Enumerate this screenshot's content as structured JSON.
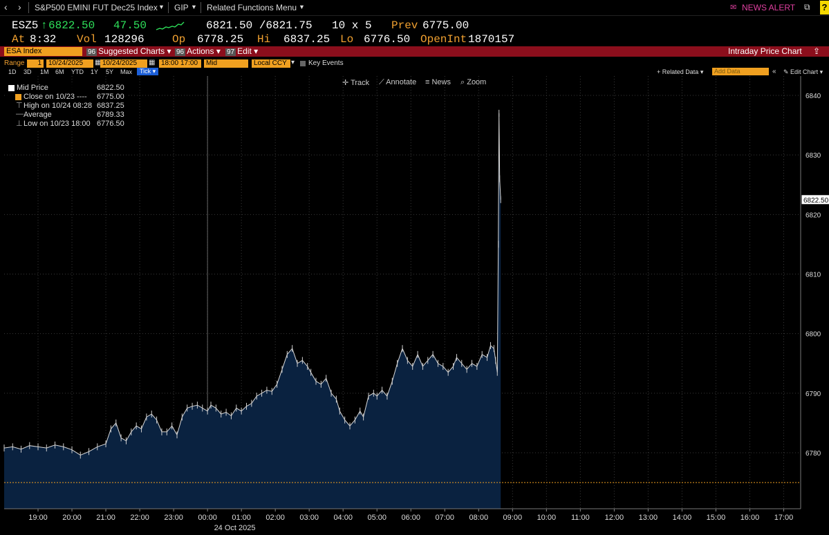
{
  "nav": {
    "title": "S&P500 EMINI FUT Dec25 Index",
    "gip": "GIP",
    "related_menu": "Related Functions Menu",
    "news_alert": "NEWS ALERT"
  },
  "quote": {
    "ticker": "ESZ5",
    "arrow": "↑",
    "last": "6822.50",
    "change": "47.50",
    "bid_ask": "6821.50 /6821.75",
    "size": "10 x 5",
    "prev_label": "Prev",
    "prev": "6775.00",
    "at_label": "At",
    "at": "8:32",
    "vol_label": "Vol",
    "vol": "128296",
    "op_label": "Op",
    "op": "6778.25",
    "hi_label": "Hi",
    "hi": "6837.25",
    "lo_label": "Lo",
    "lo": "6776.50",
    "oi_label": "OpenInt",
    "oi": "1870157"
  },
  "redbar": {
    "security": "ESA Index",
    "suggested_num": "96",
    "suggested": "Suggested Charts",
    "actions_num": "96",
    "actions": "Actions",
    "edit_num": "97",
    "edit": "Edit",
    "right_title": "Intraday Price Chart"
  },
  "controls": {
    "range_label": "Range",
    "range_n": "1",
    "start_date": "10/24/2025",
    "end_date": "10/24/2025",
    "start_time": "18:00",
    "end_time": "17:00",
    "field": "Mid",
    "currency": "Local CCY",
    "key_events": "Key Events",
    "periods": [
      "1D",
      "3D",
      "1M",
      "6M",
      "YTD",
      "1Y",
      "5Y",
      "Max"
    ],
    "tick": "Tick",
    "related_data": "Related Data",
    "add_data_placeholder": "Add Data",
    "edit_chart": "Edit Chart"
  },
  "toolbar": {
    "track": "Track",
    "annotate": "Annotate",
    "news": "News",
    "zoom": "Zoom"
  },
  "legend": [
    {
      "label": "Mid Price",
      "value": "6822.50"
    },
    {
      "label": "Close on 10/23 ----",
      "value": "6775.00"
    },
    {
      "label": "High on 10/24 08:28",
      "value": "6837.25"
    },
    {
      "label": "Average",
      "value": "6789.33"
    },
    {
      "label": "Low on 10/23 18:00",
      "value": "6776.50"
    }
  ],
  "colors": {
    "area_fill": "#0a2240",
    "prev_close_line": "#f0a020",
    "accent_orange": "#f0a030",
    "up_green": "#2ee05a",
    "bar_red": "#8b0e1c"
  },
  "chart_data": {
    "type": "area",
    "y_ticks": [
      "6780",
      "6790",
      "6800",
      "6810",
      "6820",
      "6830",
      "6840"
    ],
    "x_ticks": [
      "19:00",
      "20:00",
      "21:00",
      "22:00",
      "23:00",
      "00:00",
      "01:00",
      "02:00",
      "03:00",
      "04:00",
      "05:00",
      "06:00",
      "07:00",
      "08:00",
      "09:00",
      "10:00",
      "11:00",
      "12:00",
      "13:00",
      "14:00",
      "15:00",
      "16:00",
      "17:00"
    ],
    "x_sublabel": "24 Oct 2025",
    "last_label": "6822.50",
    "prev_close": 6775.0,
    "ylim": [
      6770,
      6842
    ],
    "series": [
      {
        "name": "Mid Price",
        "points": [
          [
            18.0,
            6780.8
          ],
          [
            18.25,
            6781.0
          ],
          [
            18.5,
            6780.6
          ],
          [
            18.75,
            6781.2
          ],
          [
            19.0,
            6781.0
          ],
          [
            19.25,
            6780.8
          ],
          [
            19.5,
            6781.3
          ],
          [
            19.75,
            6781.0
          ],
          [
            20.0,
            6780.5
          ],
          [
            20.25,
            6779.6
          ],
          [
            20.5,
            6780.2
          ],
          [
            20.75,
            6781.0
          ],
          [
            21.0,
            6781.5
          ],
          [
            21.15,
            6784.0
          ],
          [
            21.3,
            6785.0
          ],
          [
            21.45,
            6782.5
          ],
          [
            21.6,
            6782.0
          ],
          [
            21.75,
            6783.5
          ],
          [
            21.9,
            6784.5
          ],
          [
            22.05,
            6784.0
          ],
          [
            22.2,
            6786.0
          ],
          [
            22.35,
            6786.5
          ],
          [
            22.5,
            6785.5
          ],
          [
            22.65,
            6783.5
          ],
          [
            22.8,
            6783.5
          ],
          [
            22.95,
            6784.5
          ],
          [
            23.1,
            6783.0
          ],
          [
            23.25,
            6786.0
          ],
          [
            23.4,
            6787.5
          ],
          [
            23.55,
            6787.8
          ],
          [
            23.7,
            6788.0
          ],
          [
            23.85,
            6787.5
          ],
          [
            24.0,
            6787.0
          ],
          [
            24.1,
            6788.0
          ],
          [
            24.25,
            6787.5
          ],
          [
            24.4,
            6786.5
          ],
          [
            24.55,
            6786.8
          ],
          [
            24.7,
            6786.2
          ],
          [
            24.85,
            6787.5
          ],
          [
            25.0,
            6787.0
          ],
          [
            25.15,
            6787.8
          ],
          [
            25.3,
            6788.3
          ],
          [
            25.45,
            6789.5
          ],
          [
            25.6,
            6790.0
          ],
          [
            25.75,
            6790.5
          ],
          [
            25.9,
            6790.3
          ],
          [
            26.05,
            6791.5
          ],
          [
            26.2,
            6794.0
          ],
          [
            26.35,
            6796.5
          ],
          [
            26.5,
            6797.5
          ],
          [
            26.65,
            6795.0
          ],
          [
            26.8,
            6795.5
          ],
          [
            26.95,
            6794.5
          ],
          [
            27.05,
            6793.5
          ],
          [
            27.2,
            6792.0
          ],
          [
            27.35,
            6791.5
          ],
          [
            27.5,
            6792.5
          ],
          [
            27.65,
            6790.0
          ],
          [
            27.8,
            6789.0
          ],
          [
            27.9,
            6787.0
          ],
          [
            28.05,
            6785.5
          ],
          [
            28.2,
            6784.5
          ],
          [
            28.35,
            6785.5
          ],
          [
            28.5,
            6787.0
          ],
          [
            28.6,
            6786.0
          ],
          [
            28.75,
            6789.5
          ],
          [
            28.9,
            6790.0
          ],
          [
            29.0,
            6789.5
          ],
          [
            29.15,
            6790.5
          ],
          [
            29.3,
            6789.5
          ],
          [
            29.45,
            6792.0
          ],
          [
            29.6,
            6795.0
          ],
          [
            29.75,
            6797.5
          ],
          [
            29.9,
            6795.5
          ],
          [
            30.05,
            6794.5
          ],
          [
            30.2,
            6796.5
          ],
          [
            30.35,
            6794.5
          ],
          [
            30.5,
            6795.5
          ],
          [
            30.65,
            6796.5
          ],
          [
            30.8,
            6795.0
          ],
          [
            30.95,
            6794.5
          ],
          [
            31.1,
            6793.5
          ],
          [
            31.25,
            6794.5
          ],
          [
            31.35,
            6796.0
          ],
          [
            31.5,
            6795.0
          ],
          [
            31.65,
            6794.0
          ],
          [
            31.8,
            6795.0
          ],
          [
            31.95,
            6794.5
          ],
          [
            32.1,
            6796.5
          ],
          [
            32.25,
            6796.0
          ],
          [
            32.35,
            6798.0
          ],
          [
            32.45,
            6797.5
          ],
          [
            32.5,
            6795.5
          ],
          [
            32.55,
            6793.5
          ],
          [
            32.58,
            6815.0
          ],
          [
            32.6,
            6837.0
          ],
          [
            32.62,
            6826.0
          ],
          [
            32.65,
            6822.5
          ]
        ]
      }
    ]
  }
}
